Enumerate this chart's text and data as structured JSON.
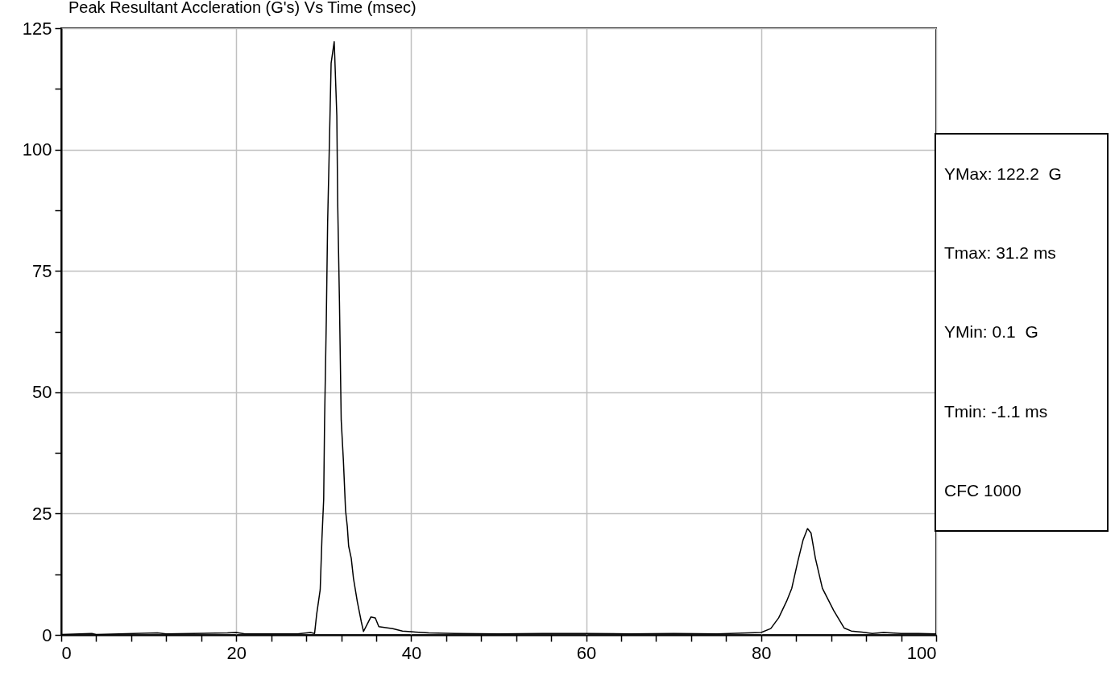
{
  "chart_data": {
    "type": "line",
    "title": "Peak Resultant Accleration (G's) Vs Time (msec)",
    "x": [
      0,
      3.5,
      4,
      11,
      12,
      19,
      20,
      21,
      27,
      28.5,
      28.96,
      29.2,
      29.6,
      29.8,
      30.0,
      30.1,
      30.3,
      30.45,
      30.6,
      30.85,
      31.2,
      31.26,
      31.5,
      31.6,
      31.8,
      31.9,
      32.0,
      32.25,
      32.5,
      32.7,
      32.85,
      33.15,
      33.4,
      33.85,
      34.3,
      34.55,
      35.0,
      35.4,
      35.9,
      36.3,
      37.9,
      39.0,
      40.5,
      42,
      45,
      50,
      55,
      60,
      65,
      70,
      75,
      80,
      81.1,
      82.0,
      82.9,
      83.5,
      84.2,
      84.8,
      85.3,
      85.7,
      86.2,
      87.0,
      88.3,
      89.5,
      90.3,
      91.5,
      92.7,
      94,
      96,
      98,
      100
    ],
    "series": [
      {
        "color": "#000000",
        "values": [
          0.1,
          0.3,
          0.1,
          0.4,
          0.2,
          0.4,
          0.5,
          0.2,
          0.2,
          0.5,
          0.3,
          4.3,
          9.3,
          19.9,
          28,
          44,
          65,
          85,
          97,
          117.8,
          122.2,
          119.4,
          107,
          89,
          68.8,
          56.6,
          44.3,
          36,
          25.6,
          22.3,
          18.3,
          15.8,
          11.7,
          6.8,
          2.7,
          0.7,
          2.3,
          3.7,
          3.5,
          1.7,
          1.3,
          0.8,
          0.6,
          0.4,
          0.3,
          0.2,
          0.3,
          0.3,
          0.2,
          0.3,
          0.2,
          0.5,
          1.3,
          3.5,
          6.9,
          9.6,
          15.2,
          19.6,
          21.9,
          21,
          15.8,
          9.6,
          5.0,
          1.4,
          0.8,
          0.6,
          0.3,
          0.5,
          0.3,
          0.3,
          0.2
        ]
      }
    ],
    "xlim": [
      0,
      100
    ],
    "xticks": [
      0,
      {
        "value": 4,
        "label": null
      },
      {
        "value": 8,
        "label": null
      },
      {
        "value": 12,
        "label": null
      },
      {
        "value": 16,
        "label": null
      },
      20,
      {
        "value": 24,
        "label": null
      },
      {
        "value": 28,
        "label": null
      },
      {
        "value": 32,
        "label": null
      },
      {
        "value": 36,
        "label": null
      },
      40,
      {
        "value": 44,
        "label": null
      },
      {
        "value": 48,
        "label": null
      },
      {
        "value": 52,
        "label": null
      },
      {
        "value": 56,
        "label": null
      },
      60,
      {
        "value": 64,
        "label": null
      },
      {
        "value": 68,
        "label": null
      },
      {
        "value": 72,
        "label": null
      },
      {
        "value": 76,
        "label": null
      },
      80,
      {
        "value": 84,
        "label": null
      },
      {
        "value": 88,
        "label": null
      },
      {
        "value": 92,
        "label": null
      },
      {
        "value": 96,
        "label": null
      },
      100
    ],
    "ylim": [
      0,
      125
    ],
    "yticks": [
      0,
      {
        "value": 12.5,
        "label": null
      },
      25,
      {
        "value": 37.5,
        "label": null
      },
      50,
      {
        "value": 62.5,
        "label": null
      },
      75,
      {
        "value": 87.5,
        "label": null
      },
      100,
      {
        "value": 112.5,
        "label": null
      },
      125
    ],
    "grid": true,
    "marker": "none",
    "line_style": "solid",
    "annotations": [
      "YMax: 122.2  G",
      "Tmax: 31.2 ms",
      "YMin: 0.1  G",
      "Tmin: -1.1 ms",
      "CFC 1000"
    ]
  }
}
